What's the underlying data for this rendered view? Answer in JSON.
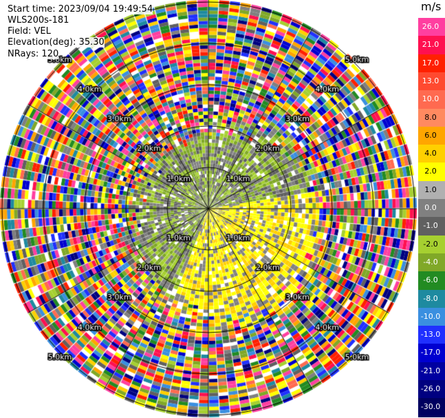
{
  "header": {
    "start_time": "Start time: 2023/09/04 19:49:54",
    "instrument": "WLS200s-181",
    "field": "Field: VEL",
    "elevation": "Elevation(deg): 35.30",
    "nrays": "NRays: 120"
  },
  "colorbar": {
    "units": "m/s",
    "levels": [
      {
        "label": "26.0",
        "color": "#ff3fa0"
      },
      {
        "label": "21.0",
        "color": "#ff1050"
      },
      {
        "label": "17.0",
        "color": "#ff2000"
      },
      {
        "label": "13.0",
        "color": "#ff4a30"
      },
      {
        "label": "10.0",
        "color": "#ff6a50"
      },
      {
        "label": "8.0",
        "color": "#ff8a60"
      },
      {
        "label": "6.0",
        "color": "#ffa500"
      },
      {
        "label": "4.0",
        "color": "#ffd000"
      },
      {
        "label": "2.0",
        "color": "#ffff00"
      },
      {
        "label": "1.0",
        "color": "#b0b0b0"
      },
      {
        "label": "0.0",
        "color": "#808080"
      },
      {
        "label": "-1.0",
        "color": "#606060"
      },
      {
        "label": "-2.0",
        "color": "#a6d030"
      },
      {
        "label": "-4.0",
        "color": "#80a828"
      },
      {
        "label": "-6.0",
        "color": "#228b22"
      },
      {
        "label": "-8.0",
        "color": "#1e8aa0"
      },
      {
        "label": "-10.0",
        "color": "#3a8fe0"
      },
      {
        "label": "-13.0",
        "color": "#2030ff"
      },
      {
        "label": "-17.0",
        "color": "#0000d0"
      },
      {
        "label": "-21.0",
        "color": "#0000a0"
      },
      {
        "label": "-26.0",
        "color": "#000080"
      },
      {
        "label": "-30.0",
        "color": "#000060"
      }
    ]
  },
  "range_labels": [
    "1.0km",
    "2.0km",
    "3.0km",
    "4.0km",
    "5.0km"
  ],
  "scene": {
    "palette_noise": [
      "#ff3fa0",
      "#ff1050",
      "#ff2000",
      "#ff6a50",
      "#ffa500",
      "#ffd000",
      "#ffff00",
      "#808080",
      "#606060",
      "#a6d030",
      "#80a828",
      "#228b22",
      "#1e8aa0",
      "#3a8fe0",
      "#2030ff",
      "#0000d0",
      "#000080",
      "#ffffff"
    ],
    "near_negative": [
      "#80a828",
      "#a6d030",
      "#808080",
      "#606060"
    ],
    "near_positive": [
      "#ffff00",
      "#ffd000",
      "#ffff00",
      "#808080"
    ]
  }
}
